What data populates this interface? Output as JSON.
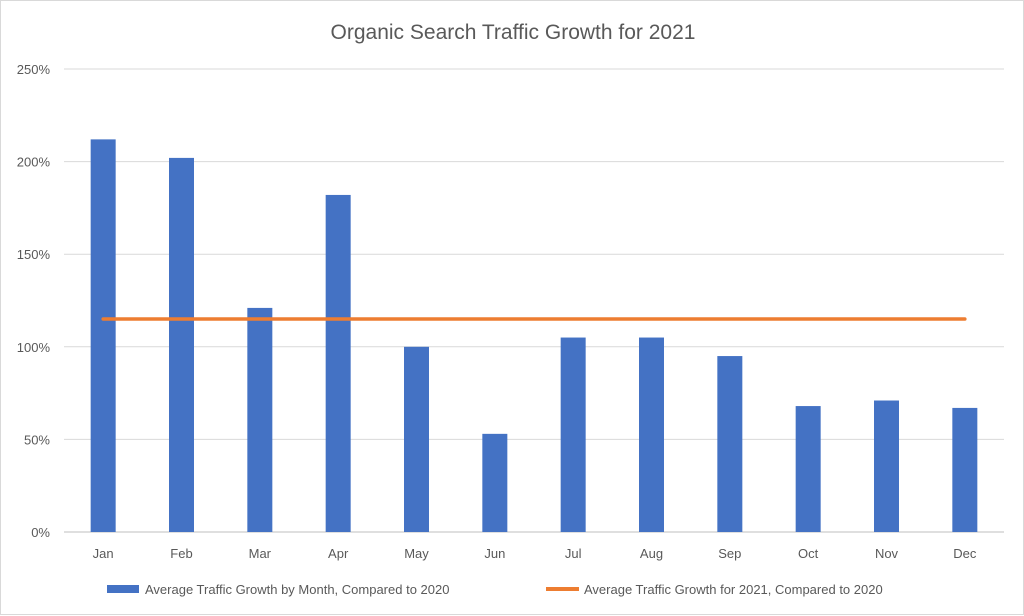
{
  "chart_data": {
    "type": "bar",
    "title": "Organic Search Traffic Growth for 2021",
    "xlabel": "",
    "ylabel": "",
    "categories": [
      "Jan",
      "Feb",
      "Mar",
      "Apr",
      "May",
      "Jun",
      "Jul",
      "Aug",
      "Sep",
      "Oct",
      "Nov",
      "Dec"
    ],
    "series": [
      {
        "name": "Average Traffic Growth by Month, Compared to 2020",
        "type": "bar",
        "color": "#4472c4",
        "values": [
          212,
          202,
          121,
          182,
          100,
          53,
          105,
          105,
          95,
          68,
          71,
          67
        ]
      },
      {
        "name": "Average Traffic Growth for 2021, Compared to 2020",
        "type": "line",
        "color": "#ed7d31",
        "values": [
          115,
          115,
          115,
          115,
          115,
          115,
          115,
          115,
          115,
          115,
          115,
          115
        ]
      }
    ],
    "ylim": [
      0,
      250
    ],
    "yticks": [
      0,
      50,
      100,
      150,
      200,
      250
    ],
    "ytick_labels": [
      "0%",
      "50%",
      "100%",
      "150%",
      "200%",
      "250%"
    ],
    "grid": true,
    "legend": "bottom"
  }
}
